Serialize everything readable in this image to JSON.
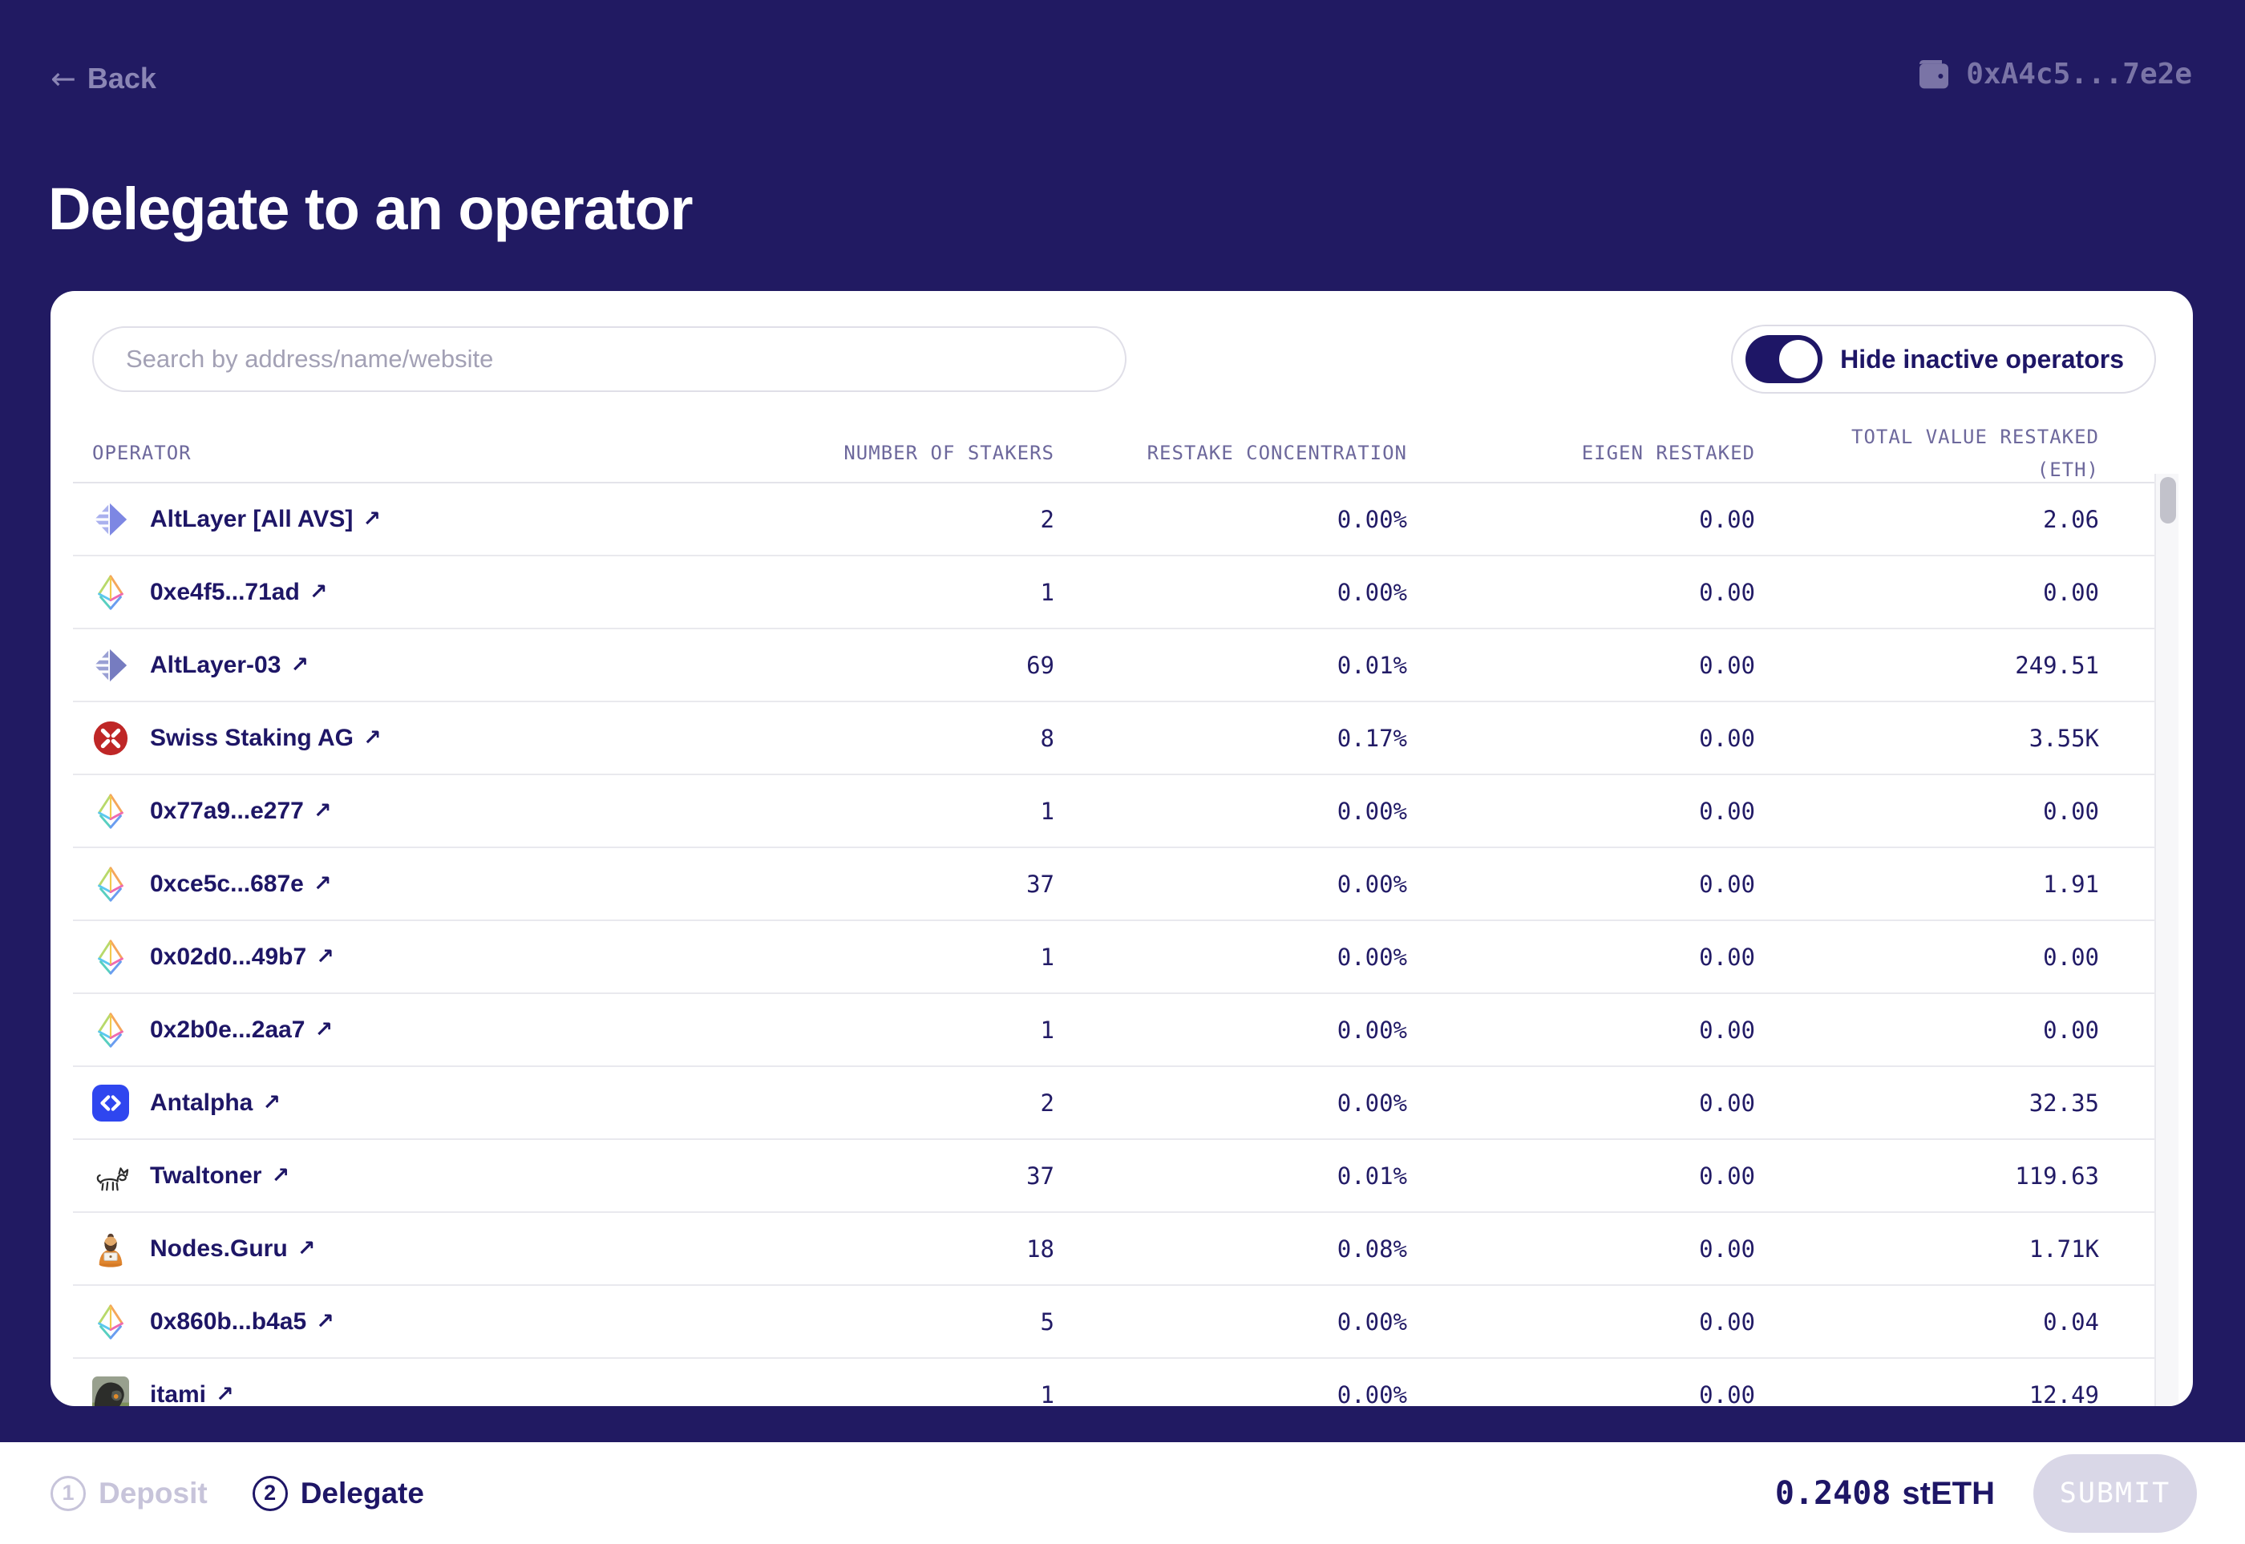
{
  "colors": {
    "background": "#211a62",
    "accent_ink": "#1e1666",
    "muted_on_navy": "#8b86b5",
    "submit_disabled_bg": "#d9d7e7",
    "swiss_red": "#bf2727",
    "antalpha_blue": "#2f46ef",
    "altlayer_purple": "#7d87e3"
  },
  "header": {
    "back_label": "Back",
    "wallet_address": "0xA4c5...7e2e"
  },
  "page_title": "Delegate to an operator",
  "panel": {
    "search_placeholder": "Search by address/name/website",
    "toggle_label": "Hide inactive operators",
    "toggle_on": true,
    "columns": [
      "OPERATOR",
      "NUMBER OF STAKERS",
      "RESTAKE CONCENTRATION",
      "EIGEN RESTAKED",
      "TOTAL VALUE RESTAKED\n(ETH)"
    ],
    "operators": [
      {
        "name": "AltLayer [All AVS]",
        "icon": "altlayer",
        "stakers": "2",
        "concentration": "0.00%",
        "eigen": "0.00",
        "total": "2.06"
      },
      {
        "name": "0xe4f5...71ad",
        "icon": "eth-diamond",
        "stakers": "1",
        "concentration": "0.00%",
        "eigen": "0.00",
        "total": "0.00"
      },
      {
        "name": "AltLayer-03",
        "icon": "altlayer-muted",
        "stakers": "69",
        "concentration": "0.01%",
        "eigen": "0.00",
        "total": "249.51"
      },
      {
        "name": "Swiss Staking AG",
        "icon": "swiss-staking",
        "stakers": "8",
        "concentration": "0.17%",
        "eigen": "0.00",
        "total": "3.55K"
      },
      {
        "name": "0x77a9...e277",
        "icon": "eth-diamond",
        "stakers": "1",
        "concentration": "0.00%",
        "eigen": "0.00",
        "total": "0.00"
      },
      {
        "name": "0xce5c...687e",
        "icon": "eth-diamond",
        "stakers": "37",
        "concentration": "0.00%",
        "eigen": "0.00",
        "total": "1.91"
      },
      {
        "name": "0x02d0...49b7",
        "icon": "eth-diamond",
        "stakers": "1",
        "concentration": "0.00%",
        "eigen": "0.00",
        "total": "0.00"
      },
      {
        "name": "0x2b0e...2aa7",
        "icon": "eth-diamond",
        "stakers": "1",
        "concentration": "0.00%",
        "eigen": "0.00",
        "total": "0.00"
      },
      {
        "name": "Antalpha",
        "icon": "antalpha",
        "stakers": "2",
        "concentration": "0.00%",
        "eigen": "0.00",
        "total": "32.35"
      },
      {
        "name": "Twaltoner",
        "icon": "twaltoner-dog",
        "stakers": "37",
        "concentration": "0.01%",
        "eigen": "0.00",
        "total": "119.63"
      },
      {
        "name": "Nodes.Guru",
        "icon": "nodes-guru",
        "stakers": "18",
        "concentration": "0.08%",
        "eigen": "0.00",
        "total": "1.71K"
      },
      {
        "name": "0x860b...b4a5",
        "icon": "eth-diamond",
        "stakers": "5",
        "concentration": "0.00%",
        "eigen": "0.00",
        "total": "0.04"
      },
      {
        "name": "itami",
        "icon": "itami-photo",
        "stakers": "1",
        "concentration": "0.00%",
        "eigen": "0.00",
        "total": "12.49"
      }
    ]
  },
  "footer": {
    "steps": [
      {
        "number": "1",
        "label": "Deposit",
        "active": false
      },
      {
        "number": "2",
        "label": "Delegate",
        "active": true
      }
    ],
    "amount_value": "0.2408",
    "amount_unit": "stETH",
    "submit_label": "SUBMIT"
  }
}
